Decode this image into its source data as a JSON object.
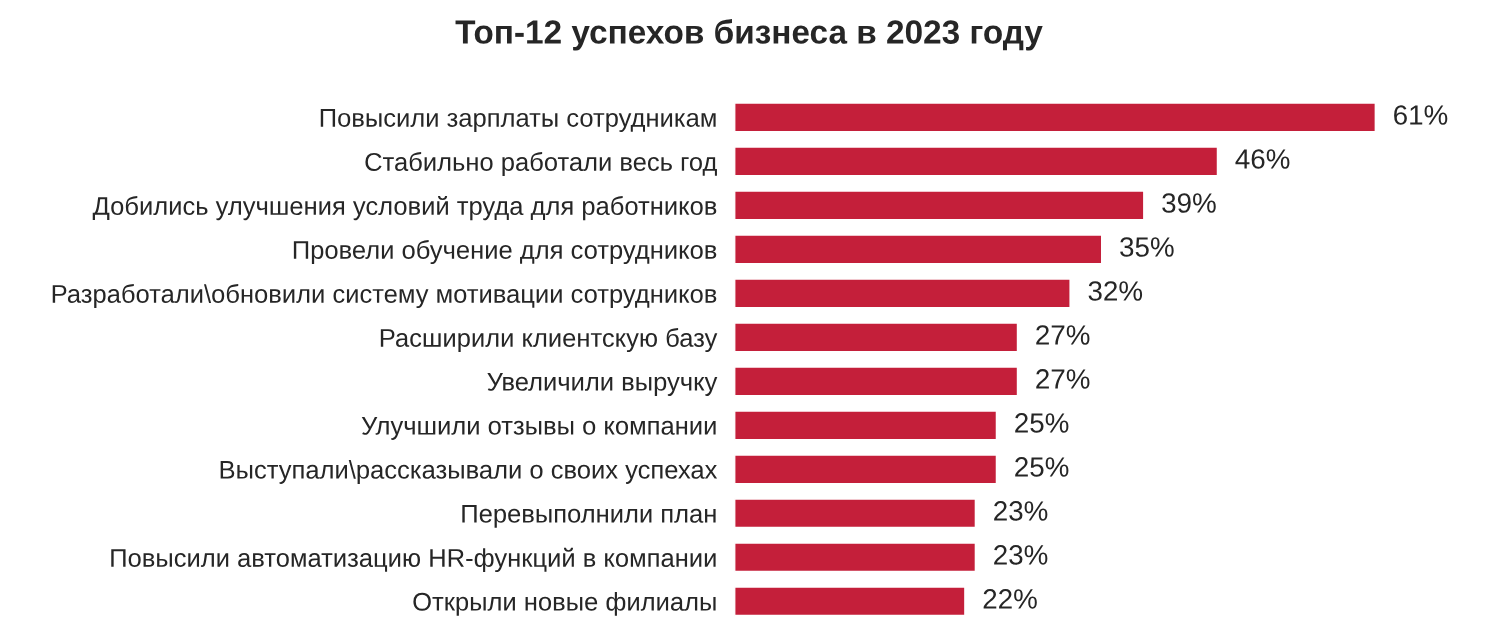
{
  "chart_data": {
    "type": "bar",
    "orientation": "horizontal",
    "title": "Топ-12 успехов бизнеса в 2023 году",
    "categories": [
      "Повысили зарплаты сотрудникам",
      "Стабильно работали весь год",
      "Добились улучшения условий труда для работников",
      "Провели обучение для сотрудников",
      "Разработали\\обновили систему мотивации сотрудников",
      "Расширили клиентскую базу",
      "Увеличили выручку",
      "Улучшили отзывы о компании",
      "Выступали\\рассказывали о своих успехах",
      "Перевыполнили план",
      "Повысили автоматизацию HR-функций в компании",
      "Открыли новые филиалы"
    ],
    "values": [
      61,
      46,
      39,
      35,
      32,
      27,
      27,
      25,
      25,
      23,
      23,
      22
    ],
    "value_labels": [
      "61%",
      "46%",
      "39%",
      "35%",
      "32%",
      "27%",
      "27%",
      "25%",
      "25%",
      "23%",
      "23%",
      "22%"
    ],
    "color": "#c41f3a",
    "tick_labels": "y",
    "grid": false,
    "legend": false
  }
}
